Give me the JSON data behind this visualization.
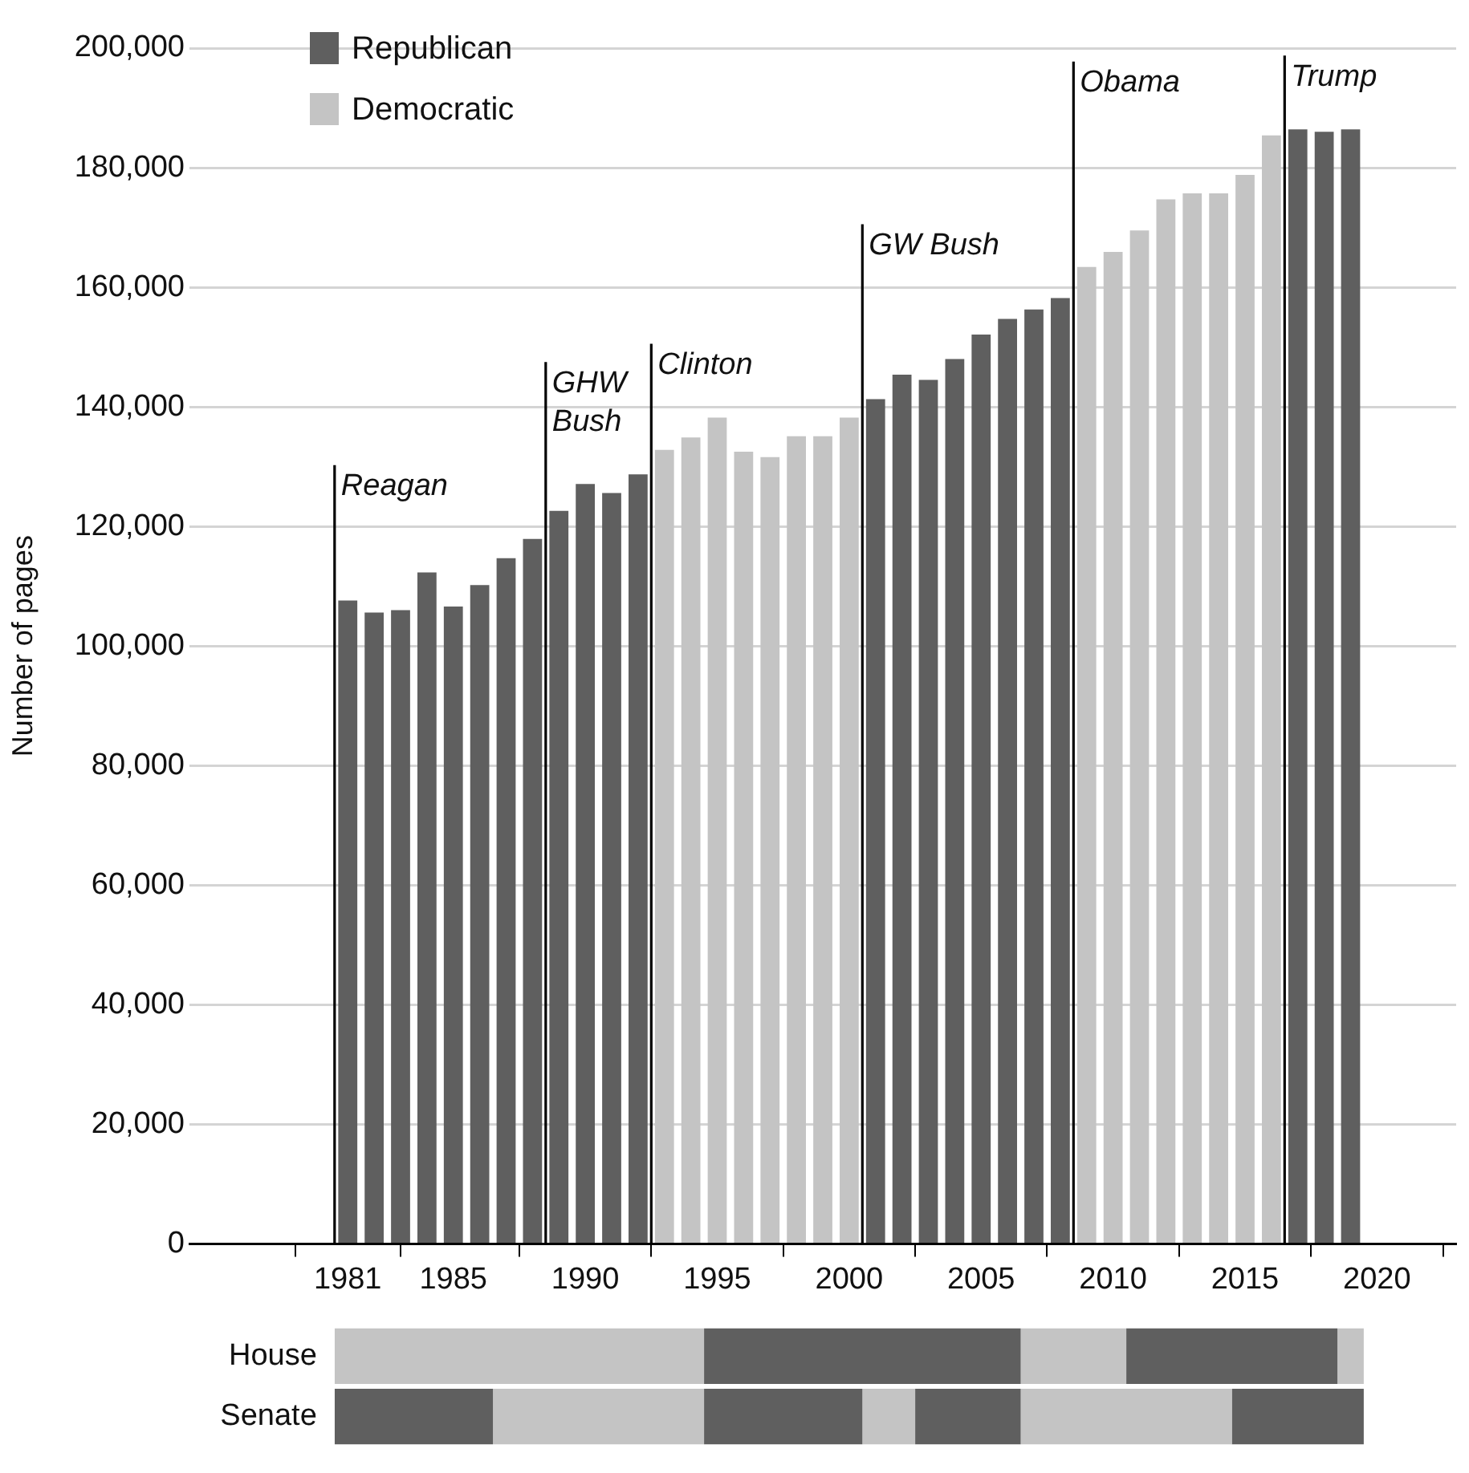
{
  "chart_data": [
    {
      "type": "bar",
      "ylabel": "Number of pages",
      "x": [
        1981,
        1982,
        1983,
        1984,
        1985,
        1986,
        1987,
        1988,
        1989,
        1990,
        1991,
        1992,
        1993,
        1994,
        1995,
        1996,
        1997,
        1998,
        1999,
        2000,
        2001,
        2002,
        2003,
        2004,
        2005,
        2006,
        2007,
        2008,
        2009,
        2010,
        2011,
        2012,
        2013,
        2014,
        2015,
        2016,
        2017,
        2018,
        2019
      ],
      "series": [
        {
          "name": "Republican",
          "color": "#5f5f5f",
          "values": [
            107600,
            105600,
            106000,
            112300,
            106600,
            110200,
            114700,
            117900,
            122600,
            127100,
            125600,
            128700,
            null,
            null,
            null,
            null,
            null,
            null,
            null,
            null,
            141300,
            145400,
            144500,
            148000,
            152100,
            154700,
            156300,
            158200,
            null,
            null,
            null,
            null,
            null,
            null,
            null,
            null,
            186400,
            186000,
            186400
          ]
        },
        {
          "name": "Democratic",
          "color": "#c4c4c4",
          "values": [
            null,
            null,
            null,
            null,
            null,
            null,
            null,
            null,
            null,
            null,
            null,
            null,
            132800,
            134900,
            138200,
            132500,
            131600,
            135100,
            135100,
            138200,
            null,
            null,
            null,
            null,
            null,
            null,
            null,
            null,
            163400,
            165900,
            169500,
            174700,
            175700,
            175700,
            178800,
            185400,
            null,
            null,
            null
          ]
        }
      ],
      "xlim": [
        1975,
        2023
      ],
      "xticks": [
        1981,
        1985,
        1990,
        1995,
        2000,
        2005,
        2010,
        2015,
        2020
      ],
      "ylim": [
        0,
        200000
      ],
      "yticks": [
        0,
        {
          "value": 20000,
          "label": "20,000"
        },
        {
          "value": 40000,
          "label": "40,000"
        },
        {
          "value": 60000,
          "label": "60,000"
        },
        {
          "value": 80000,
          "label": "80,000"
        },
        {
          "value": 100000,
          "label": "100,000"
        },
        {
          "value": 120000,
          "label": "120,000"
        },
        {
          "value": 140000,
          "label": "140,000"
        },
        {
          "value": 160000,
          "label": "160,000"
        },
        {
          "value": 180000,
          "label": "180,000"
        },
        {
          "value": 200000,
          "label": "200,000"
        }
      ],
      "grid": "y",
      "legend": "top left",
      "ref_lines": [
        {
          "axis": "x",
          "value": 1980.5,
          "label": "Reagan",
          "color": "#000000"
        },
        {
          "axis": "x",
          "value": 1988.5,
          "label": "GHW Bush",
          "color": "#000000"
        },
        {
          "axis": "x",
          "value": 1992.5,
          "label": "Clinton",
          "color": "#000000"
        },
        {
          "axis": "x",
          "value": 2000.5,
          "label": "GW Bush",
          "color": "#000000"
        },
        {
          "axis": "x",
          "value": 2008.5,
          "label": "Obama",
          "color": "#000000"
        },
        {
          "axis": "x",
          "value": 2016.5,
          "label": "Trump",
          "color": "#000000"
        }
      ]
    },
    {
      "type": "bar",
      "orientation": "horizontal",
      "categories": [
        "House",
        "Senate"
      ],
      "xlim": [
        1980.5,
        2019.5
      ],
      "xticks": [
        1985,
        1990,
        1995,
        2000,
        2005,
        2010,
        2015
      ],
      "tick_labels": "y",
      "series": [
        {
          "color": "#c4c4c4",
          "base": [
            1980.5,
            null
          ],
          "values": [
            14,
            null
          ]
        },
        {
          "color": "#5f5f5f",
          "base": [
            1994.5,
            null
          ],
          "values": [
            12,
            null
          ]
        },
        {
          "color": "#c4c4c4",
          "base": [
            2006.5,
            null
          ],
          "values": [
            4,
            null
          ]
        },
        {
          "color": "#5f5f5f",
          "base": [
            2010.5,
            null
          ],
          "values": [
            8,
            null
          ]
        },
        {
          "color": "#c4c4c4",
          "base": [
            2018.5,
            null
          ],
          "values": [
            1,
            null
          ]
        },
        {
          "color": "#5f5f5f",
          "base": [
            null,
            1980.5
          ],
          "values": [
            null,
            6
          ]
        },
        {
          "color": "#c4c4c4",
          "base": [
            null,
            1986.5
          ],
          "values": [
            null,
            8
          ]
        },
        {
          "color": "#5f5f5f",
          "base": [
            null,
            1994.5
          ],
          "values": [
            null,
            6
          ]
        },
        {
          "color": "#c4c4c4",
          "base": [
            null,
            2000.5
          ],
          "values": [
            null,
            2
          ]
        },
        {
          "color": "#5f5f5f",
          "base": [
            null,
            2002.5
          ],
          "values": [
            null,
            4
          ]
        },
        {
          "color": "#c4c4c4",
          "base": [
            null,
            2006.5
          ],
          "values": [
            null,
            8
          ]
        },
        {
          "color": "#5f5f5f",
          "base": [
            null,
            2014.5
          ],
          "values": [
            null,
            5
          ]
        }
      ]
    }
  ]
}
